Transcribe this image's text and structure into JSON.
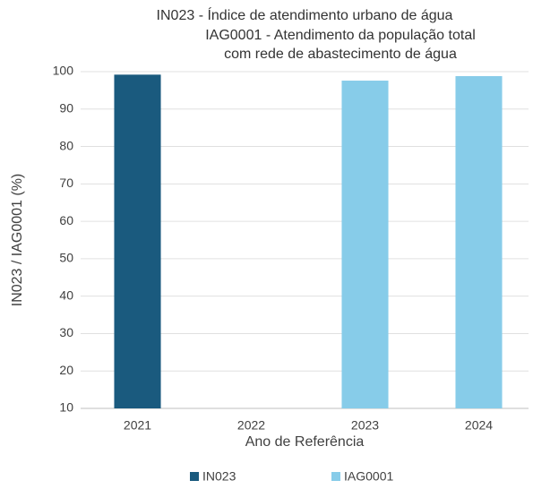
{
  "chart_data": {
    "type": "bar",
    "title": "IN023 - Índice de atendimento urbano de água",
    "subtitle": "IAG0001 - Atendimento da população total com rede de abastecimento de água",
    "x_label": "Ano de Referência",
    "y_label": "IN023 / IAG0001 (%)",
    "categories": [
      "2021",
      "2022",
      "2023",
      "2024"
    ],
    "series": [
      {
        "name": "IN023",
        "color": "#1a5a7e",
        "values": [
          99.2,
          null,
          null,
          null
        ]
      },
      {
        "name": "IAG0001",
        "color": "#87cce9",
        "values": [
          null,
          null,
          97.6,
          98.8
        ]
      }
    ],
    "ylim": [
      10,
      100
    ],
    "yticks": [
      10,
      20,
      30,
      40,
      50,
      60,
      70,
      80,
      90,
      100
    ],
    "grid": true,
    "legend": "bottom"
  }
}
